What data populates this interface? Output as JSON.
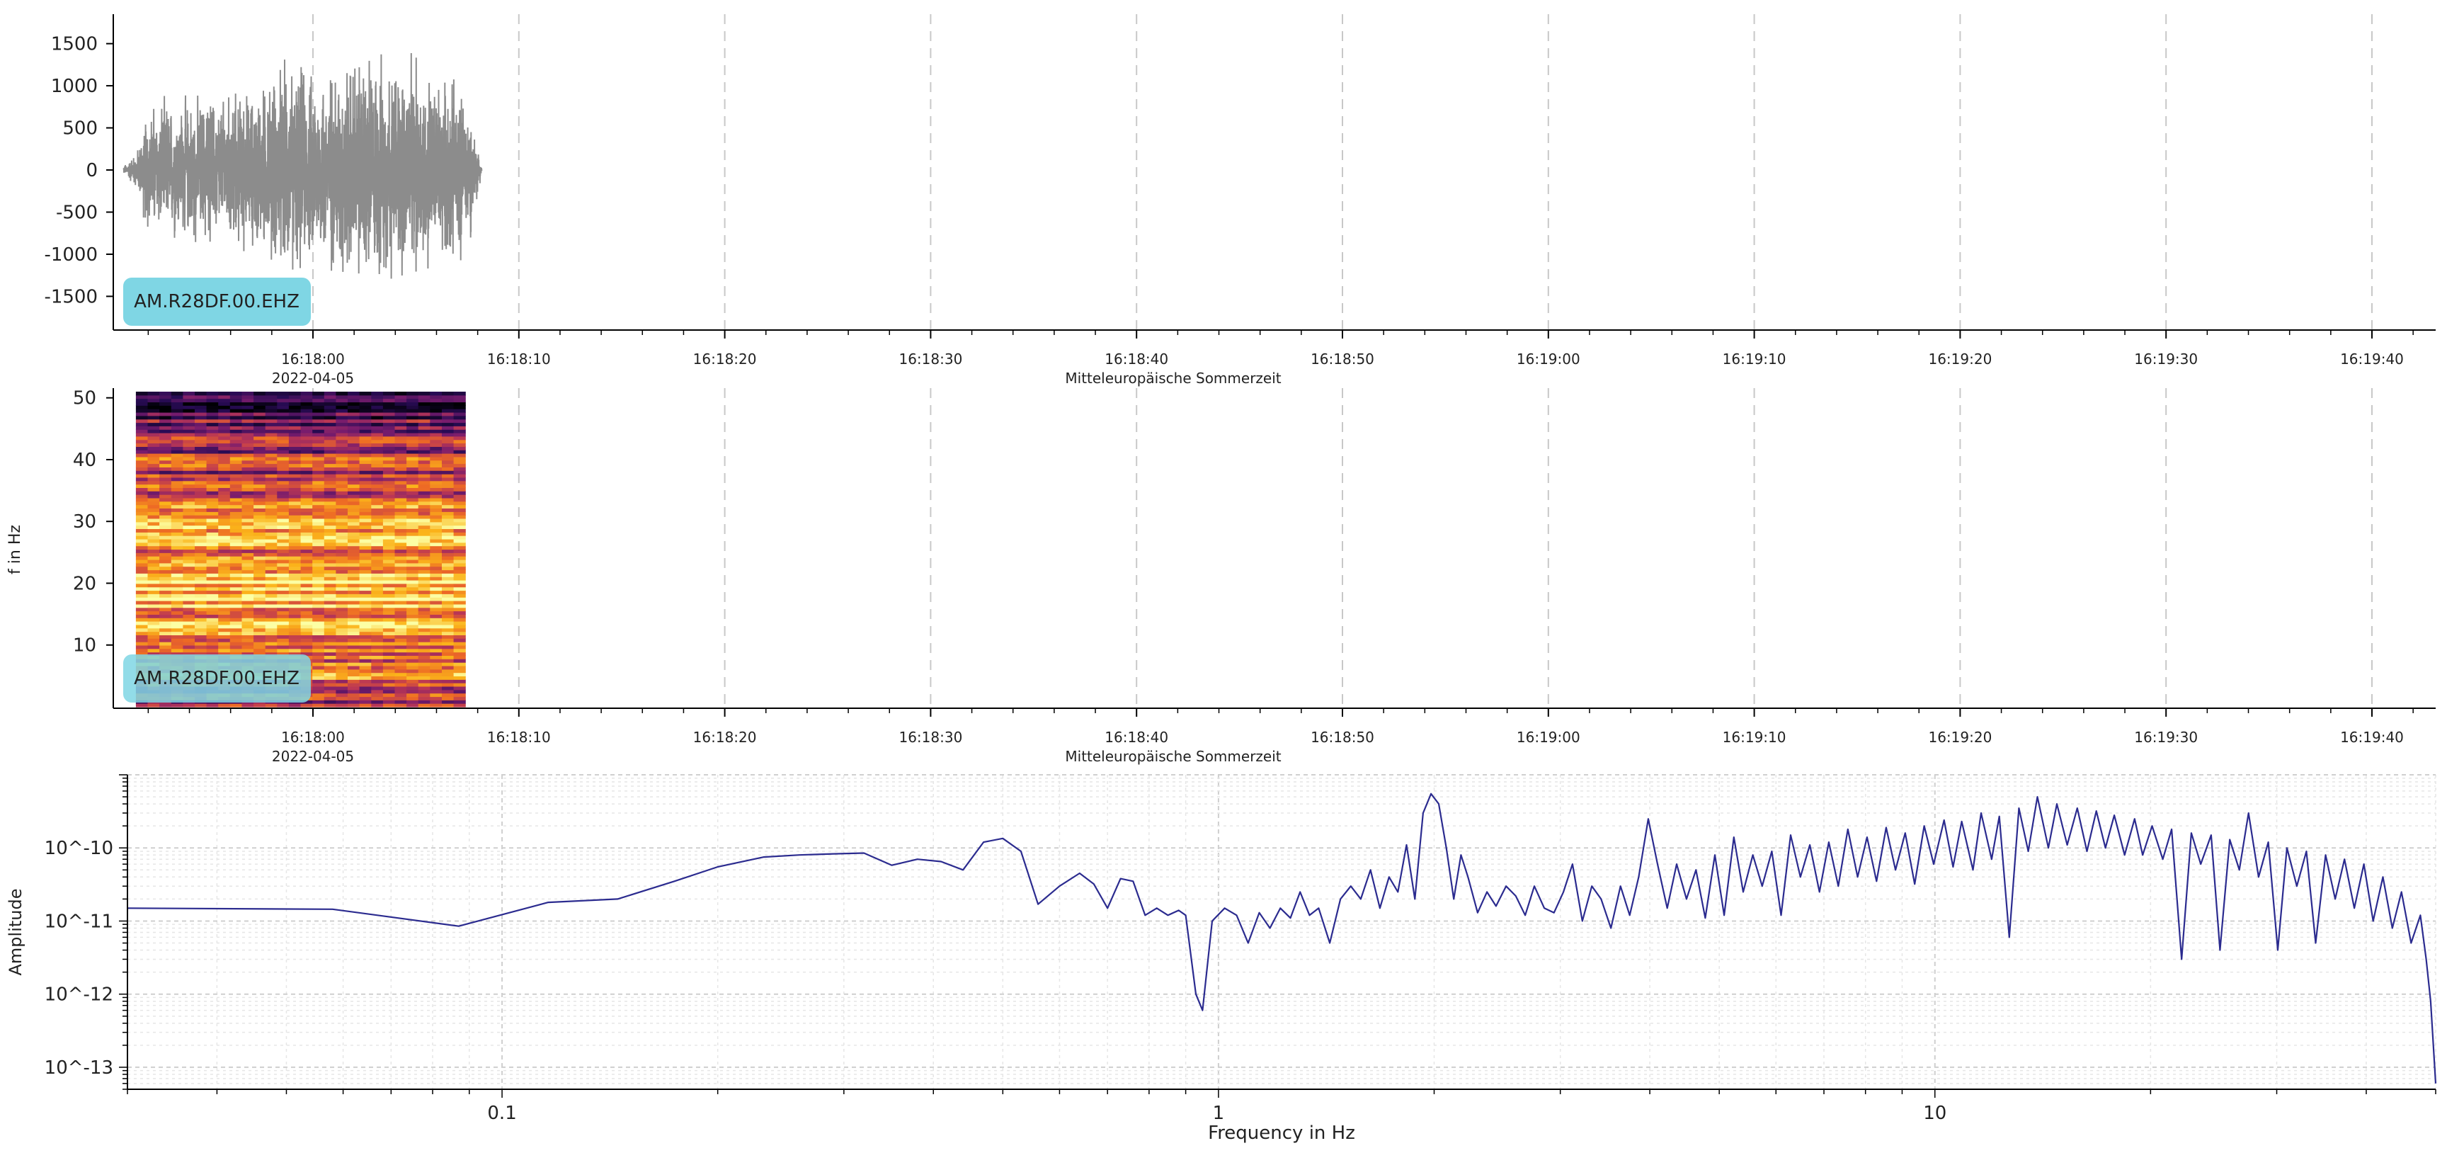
{
  "station_label": "AM.R28DF.00.EHZ",
  "colors": {
    "waveform": "#8c8c8c",
    "station_badge": "#7fd6e4",
    "spectrum_line": "#2b2b8f",
    "axis": "#000000",
    "grid": "#c8c8c8"
  },
  "time_axis": {
    "tick_labels": [
      "16:18:00",
      "16:18:10",
      "16:18:20",
      "16:18:30",
      "16:18:40",
      "16:18:50",
      "16:19:00",
      "16:19:10",
      "16:19:20",
      "16:19:30",
      "16:19:40"
    ],
    "date_label": "2022-04-05",
    "timezone_label": "Mitteleuropäische Sommerzeit"
  },
  "chart_data": [
    {
      "type": "line",
      "panel": "waveform",
      "ylim": [
        -1900,
        1850
      ],
      "ytick_labels": [
        "1500",
        "1000",
        "500",
        "0",
        "-500",
        "-1000",
        "-1500"
      ],
      "yticks": [
        1500,
        1000,
        500,
        0,
        -500,
        -1000,
        -1500
      ],
      "x_range_seconds": [
        -9.2,
        103
      ],
      "signal_span_seconds": [
        -9.2,
        8.2
      ],
      "envelope": [
        {
          "t": -9.2,
          "amp": 50
        },
        {
          "t": -8.5,
          "amp": 300
        },
        {
          "t": -8.0,
          "amp": 900
        },
        {
          "t": -6.0,
          "amp": 1000
        },
        {
          "t": -3.0,
          "amp": 1100
        },
        {
          "t": -1.0,
          "amp": 1500
        },
        {
          "t": 0.0,
          "amp": 1300
        },
        {
          "t": 2.5,
          "amp": 1600
        },
        {
          "t": 5.0,
          "amp": 1500
        },
        {
          "t": 7.5,
          "amp": 1100
        },
        {
          "t": 8.2,
          "amp": 40
        }
      ],
      "grid": "vertical dashed at time ticks"
    },
    {
      "type": "heatmap",
      "panel": "spectrogram",
      "ylabel": "f in Hz",
      "ytick_labels": [
        "50",
        "40",
        "30",
        "20",
        "10"
      ],
      "yticks": [
        50,
        40,
        30,
        20,
        10
      ],
      "ylim": [
        0,
        51
      ],
      "time_span_seconds": [
        -8.6,
        7.4
      ],
      "colormap": "inferno",
      "band_intensity_by_frequency": [
        {
          "f": 2,
          "level": 0.55
        },
        {
          "f": 5,
          "level": 0.7
        },
        {
          "f": 10,
          "level": 0.75
        },
        {
          "f": 15,
          "level": 0.8
        },
        {
          "f": 19,
          "level": 0.92
        },
        {
          "f": 24,
          "level": 0.75
        },
        {
          "f": 30,
          "level": 0.8
        },
        {
          "f": 35,
          "level": 0.6
        },
        {
          "f": 40,
          "level": 0.55
        },
        {
          "f": 45,
          "level": 0.4
        },
        {
          "f": 50,
          "level": 0.2
        }
      ]
    },
    {
      "type": "line",
      "panel": "spectrum",
      "xlabel": "Frequency in Hz",
      "ylabel": "Amplitude",
      "xscale": "log",
      "yscale": "log",
      "xlim": [
        0.03,
        50
      ],
      "ylim": [
        5e-14,
        1e-09
      ],
      "xtick_labels": [
        "0.1",
        "1",
        "10"
      ],
      "xticks": [
        0.1,
        1,
        10
      ],
      "ytick_labels": [
        "10^-10",
        "10^-11",
        "10^-12",
        "10^-13"
      ],
      "yticks": [
        1e-10,
        1e-11,
        1e-12,
        1e-13
      ],
      "grid": "both major and minor",
      "points": [
        [
          0.03,
          1.5e-11
        ],
        [
          0.058,
          1.45e-11
        ],
        [
          0.087,
          8.5e-12
        ],
        [
          0.116,
          1.8e-11
        ],
        [
          0.145,
          2e-11
        ],
        [
          0.174,
          3.5e-11
        ],
        [
          0.2,
          5.5e-11
        ],
        [
          0.232,
          7.5e-11
        ],
        [
          0.26,
          8e-11
        ],
        [
          0.29,
          8.3e-11
        ],
        [
          0.32,
          8.5e-11
        ],
        [
          0.35,
          5.8e-11
        ],
        [
          0.38,
          7e-11
        ],
        [
          0.41,
          6.5e-11
        ],
        [
          0.44,
          5e-11
        ],
        [
          0.47,
          1.2e-10
        ],
        [
          0.5,
          1.35e-10
        ],
        [
          0.53,
          9e-11
        ],
        [
          0.56,
          1.7e-11
        ],
        [
          0.6,
          3e-11
        ],
        [
          0.64,
          4.5e-11
        ],
        [
          0.67,
          3.2e-11
        ],
        [
          0.7,
          1.5e-11
        ],
        [
          0.73,
          3.8e-11
        ],
        [
          0.76,
          3.5e-11
        ],
        [
          0.79,
          1.2e-11
        ],
        [
          0.82,
          1.5e-11
        ],
        [
          0.85,
          1.2e-11
        ],
        [
          0.88,
          1.4e-11
        ],
        [
          0.9,
          1.2e-11
        ],
        [
          0.93,
          1e-12
        ],
        [
          0.95,
          6e-13
        ],
        [
          0.98,
          1e-11
        ],
        [
          1.02,
          1.5e-11
        ],
        [
          1.06,
          1.2e-11
        ],
        [
          1.1,
          5e-12
        ],
        [
          1.14,
          1.3e-11
        ],
        [
          1.18,
          8e-12
        ],
        [
          1.22,
          1.5e-11
        ],
        [
          1.26,
          1.1e-11
        ],
        [
          1.3,
          2.5e-11
        ],
        [
          1.34,
          1.2e-11
        ],
        [
          1.38,
          1.5e-11
        ],
        [
          1.43,
          5e-12
        ],
        [
          1.48,
          2e-11
        ],
        [
          1.53,
          3e-11
        ],
        [
          1.58,
          2e-11
        ],
        [
          1.63,
          5e-11
        ],
        [
          1.68,
          1.5e-11
        ],
        [
          1.73,
          4e-11
        ],
        [
          1.78,
          2.5e-11
        ],
        [
          1.83,
          1.1e-10
        ],
        [
          1.88,
          2e-11
        ],
        [
          1.93,
          3e-10
        ],
        [
          1.98,
          5.5e-10
        ],
        [
          2.03,
          4e-10
        ],
        [
          2.08,
          1e-10
        ],
        [
          2.13,
          2e-11
        ],
        [
          2.18,
          8e-11
        ],
        [
          2.23,
          4e-11
        ],
        [
          2.3,
          1.3e-11
        ],
        [
          2.37,
          2.5e-11
        ],
        [
          2.44,
          1.6e-11
        ],
        [
          2.52,
          3e-11
        ],
        [
          2.6,
          2.2e-11
        ],
        [
          2.68,
          1.2e-11
        ],
        [
          2.76,
          3e-11
        ],
        [
          2.85,
          1.5e-11
        ],
        [
          2.94,
          1.3e-11
        ],
        [
          3.03,
          2.5e-11
        ],
        [
          3.12,
          6e-11
        ],
        [
          3.22,
          1e-11
        ],
        [
          3.32,
          3e-11
        ],
        [
          3.42,
          2e-11
        ],
        [
          3.53,
          8e-12
        ],
        [
          3.64,
          3e-11
        ],
        [
          3.75,
          1.2e-11
        ],
        [
          3.86,
          4e-11
        ],
        [
          3.98,
          2.5e-10
        ],
        [
          4.1,
          6e-11
        ],
        [
          4.23,
          1.5e-11
        ],
        [
          4.36,
          6e-11
        ],
        [
          4.5,
          2e-11
        ],
        [
          4.64,
          5e-11
        ],
        [
          4.78,
          1.1e-11
        ],
        [
          4.93,
          8e-11
        ],
        [
          5.08,
          1.2e-11
        ],
        [
          5.24,
          1.4e-10
        ],
        [
          5.4,
          2.5e-11
        ],
        [
          5.57,
          8e-11
        ],
        [
          5.74,
          3e-11
        ],
        [
          5.92,
          9e-11
        ],
        [
          6.1,
          1.2e-11
        ],
        [
          6.29,
          1.5e-10
        ],
        [
          6.49,
          4e-11
        ],
        [
          6.69,
          1.1e-10
        ],
        [
          6.9,
          2.5e-11
        ],
        [
          7.11,
          1.2e-10
        ],
        [
          7.33,
          3e-11
        ],
        [
          7.56,
          1.8e-10
        ],
        [
          7.8,
          4e-11
        ],
        [
          8.04,
          1.4e-10
        ],
        [
          8.29,
          3.5e-11
        ],
        [
          8.55,
          1.9e-10
        ],
        [
          8.81,
          5e-11
        ],
        [
          9.09,
          1.6e-10
        ],
        [
          9.37,
          3.2e-11
        ],
        [
          9.66,
          2e-10
        ],
        [
          9.96,
          6e-11
        ],
        [
          10.3,
          2.4e-10
        ],
        [
          10.6,
          5.5e-11
        ],
        [
          10.9,
          2.3e-10
        ],
        [
          11.3,
          5e-11
        ],
        [
          11.6,
          3e-10
        ],
        [
          12.0,
          7e-11
        ],
        [
          12.3,
          2.7e-10
        ],
        [
          12.7,
          6e-12
        ],
        [
          13.1,
          3.5e-10
        ],
        [
          13.5,
          9e-11
        ],
        [
          13.9,
          5e-10
        ],
        [
          14.4,
          1e-10
        ],
        [
          14.8,
          4e-10
        ],
        [
          15.3,
          1.1e-10
        ],
        [
          15.8,
          3.5e-10
        ],
        [
          16.3,
          9e-11
        ],
        [
          16.8,
          3.2e-10
        ],
        [
          17.3,
          1e-10
        ],
        [
          17.8,
          2.8e-10
        ],
        [
          18.4,
          8e-11
        ],
        [
          19.0,
          2.5e-10
        ],
        [
          19.5,
          8e-11
        ],
        [
          20.1,
          2e-10
        ],
        [
          20.8,
          7e-11
        ],
        [
          21.4,
          1.8e-10
        ],
        [
          22.1,
          3e-12
        ],
        [
          22.8,
          1.6e-10
        ],
        [
          23.5,
          6e-11
        ],
        [
          24.3,
          1.5e-10
        ],
        [
          25.0,
          4e-12
        ],
        [
          25.8,
          1.3e-10
        ],
        [
          26.6,
          5e-11
        ],
        [
          27.4,
          3e-10
        ],
        [
          28.3,
          4e-11
        ],
        [
          29.2,
          1.2e-10
        ],
        [
          30.1,
          4e-12
        ],
        [
          31.0,
          1e-10
        ],
        [
          32.0,
          3e-11
        ],
        [
          33.0,
          9e-11
        ],
        [
          34.0,
          5e-12
        ],
        [
          35.1,
          8e-11
        ],
        [
          36.2,
          2e-11
        ],
        [
          37.3,
          7e-11
        ],
        [
          38.5,
          1.5e-11
        ],
        [
          39.7,
          6e-11
        ],
        [
          40.9,
          1e-11
        ],
        [
          42.2,
          4e-11
        ],
        [
          43.5,
          8e-12
        ],
        [
          44.8,
          2.5e-11
        ],
        [
          46.2,
          5e-12
        ],
        [
          47.6,
          1.2e-11
        ],
        [
          48.5,
          3e-12
        ],
        [
          49.2,
          8e-13
        ],
        [
          50.0,
          6e-14
        ]
      ]
    }
  ]
}
